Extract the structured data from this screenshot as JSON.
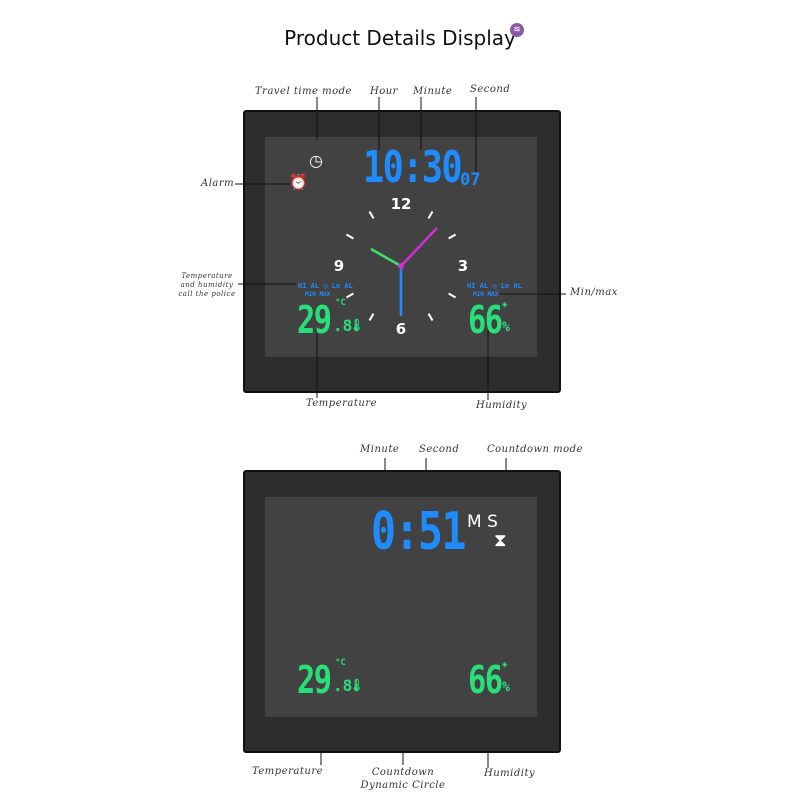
{
  "header": {
    "title": "Product Details Display",
    "logo": "brand-logo"
  },
  "clock_panel": {
    "labels": {
      "travel": "Travel time mode",
      "hour": "Hour",
      "minute": "Minute",
      "second": "Second",
      "alarm": "Alarm",
      "alert": "Temperature and humidity call the police",
      "minmax": "Min/max",
      "temperature": "Temperature",
      "humidity": "Humidity"
    },
    "time": "10:30",
    "seconds": "07",
    "dial": {
      "n12": "12",
      "n3": "3",
      "n6": "6",
      "n9": "9"
    },
    "alarm_left": "HI AL ◷ Lo AL",
    "minmax_left": "MIN MAX",
    "alarm_right": "HI AL ◷ Lo AL",
    "minmax_right": "MIN MAX",
    "temp_int": "29",
    "temp_dec": ".8",
    "temp_unit": "°C",
    "hum": "66",
    "hum_unit": "%"
  },
  "countdown_panel": {
    "labels": {
      "minute": "Minute",
      "second": "Second",
      "mode": "Countdown mode",
      "temperature": "Temperature",
      "circle": "Countdown Dynamic Circle",
      "humidity": "Humidity"
    },
    "time": "0:51",
    "ms": "M S",
    "temp_int": "29",
    "temp_dec": ".8",
    "temp_unit": "°C",
    "hum": "66",
    "hum_unit": "%"
  },
  "colors": {
    "blue": "#1e8cff",
    "green": "#28e07a",
    "panel": "#2e2d2d",
    "screen": "#434242"
  }
}
